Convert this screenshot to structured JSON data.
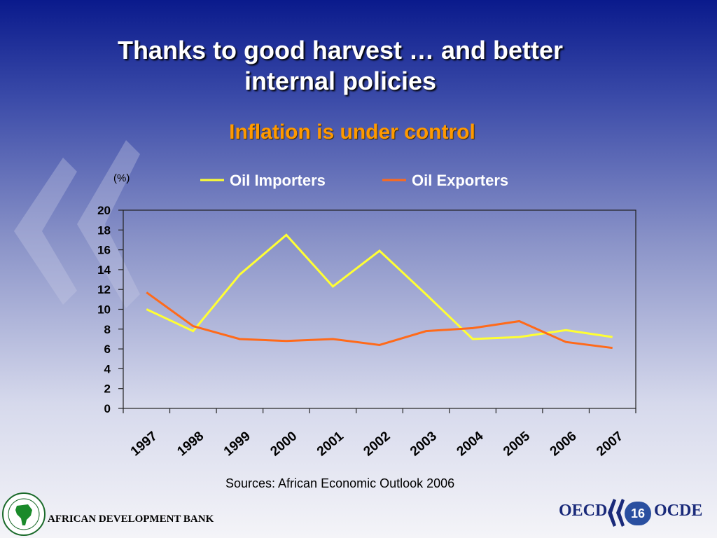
{
  "slide": {
    "title_line1": "Thanks to good harvest … and better",
    "title_line2": "internal policies",
    "subtitle": "Inflation is under control",
    "source": "Sources: African Economic Outlook 2006",
    "page_number": "16",
    "footer_left": "AFRICAN DEVELOPMENT BANK",
    "footer_right_a": "OECD",
    "footer_right_b": "OCDE"
  },
  "colors": {
    "title": "#ffffff",
    "subtitle": "#ff9900",
    "oil_importers": "#ffff33",
    "oil_exporters": "#ff6a1a"
  },
  "chart_data": {
    "type": "line",
    "unit_label": "(%)",
    "categories": [
      "1997",
      "1998",
      "1999",
      "2000",
      "2001",
      "2002",
      "2003",
      "2004",
      "2005",
      "2006",
      "2007"
    ],
    "series": [
      {
        "name": "Oil Importers",
        "values": [
          10.0,
          7.8,
          13.5,
          17.5,
          12.3,
          15.9,
          11.5,
          7.0,
          7.2,
          7.9,
          7.2
        ]
      },
      {
        "name": "Oil Exporters",
        "values": [
          11.7,
          8.3,
          7.0,
          6.8,
          7.0,
          6.4,
          7.8,
          8.1,
          8.8,
          6.7,
          6.1
        ]
      }
    ],
    "ylim": [
      0,
      20
    ],
    "yticks": [
      0,
      2,
      4,
      6,
      8,
      10,
      12,
      14,
      16,
      18,
      20
    ],
    "legend": "top",
    "grid": false
  }
}
